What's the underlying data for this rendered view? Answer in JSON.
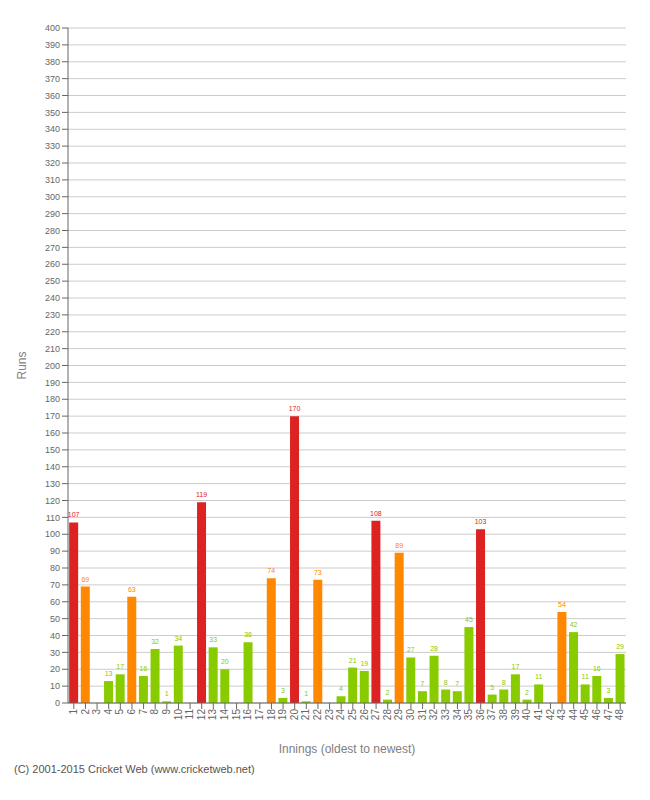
{
  "chart_data": {
    "type": "bar",
    "xlabel": "Innings (oldest to newest)",
    "ylabel": "Runs",
    "annotations": [
      "(C) 2001-2015 Cricket Web (www.cricketweb.net)"
    ],
    "categories": [
      "1",
      "2",
      "3",
      "4",
      "5",
      "6",
      "7",
      "8",
      "9",
      "10",
      "11",
      "12",
      "13",
      "14",
      "15",
      "16",
      "17",
      "18",
      "19",
      "20",
      "21",
      "22",
      "23",
      "24",
      "25",
      "26",
      "27",
      "28",
      "29",
      "30",
      "31",
      "32",
      "33",
      "34",
      "35",
      "36",
      "37",
      "38",
      "39",
      "40",
      "41",
      "42",
      "43",
      "44",
      "45",
      "46",
      "47",
      "48"
    ],
    "values": [
      107,
      69,
      0,
      13,
      17,
      63,
      16,
      32,
      1,
      34,
      0,
      119,
      33,
      20,
      0,
      36,
      0,
      74,
      3,
      170,
      1,
      73,
      0,
      4,
      21,
      19,
      108,
      2,
      89,
      27,
      7,
      28,
      8,
      7,
      45,
      103,
      5,
      8,
      17,
      2,
      11,
      0,
      54,
      42,
      11,
      16,
      3,
      29
    ],
    "colors": [
      "#dd2222",
      "#ff8800",
      "#88cc00",
      "#88cc00",
      "#88cc00",
      "#ff8800",
      "#88cc00",
      "#88cc00",
      "#88cc00",
      "#88cc00",
      "#88cc00",
      "#dd2222",
      "#88cc00",
      "#88cc00",
      "#88cc00",
      "#88cc00",
      "#88cc00",
      "#ff8800",
      "#88cc00",
      "#dd2222",
      "#88cc00",
      "#ff8800",
      "#88cc00",
      "#88cc00",
      "#88cc00",
      "#88cc00",
      "#dd2222",
      "#88cc00",
      "#ff8800",
      "#88cc00",
      "#88cc00",
      "#88cc00",
      "#88cc00",
      "#88cc00",
      "#88cc00",
      "#dd2222",
      "#88cc00",
      "#88cc00",
      "#88cc00",
      "#88cc00",
      "#88cc00",
      "#88cc00",
      "#ff8800",
      "#88cc00",
      "#88cc00",
      "#88cc00",
      "#88cc00",
      "#88cc00"
    ],
    "ylim": [
      0,
      400
    ],
    "yticks": [
      0,
      10,
      20,
      30,
      40,
      50,
      60,
      70,
      80,
      90,
      100,
      110,
      120,
      130,
      140,
      150,
      160,
      170,
      180,
      190,
      200,
      210,
      220,
      230,
      240,
      250,
      260,
      270,
      280,
      290,
      300,
      310,
      320,
      330,
      340,
      350,
      360,
      370,
      380,
      390,
      400
    ],
    "grid": true,
    "data_labels": true
  }
}
